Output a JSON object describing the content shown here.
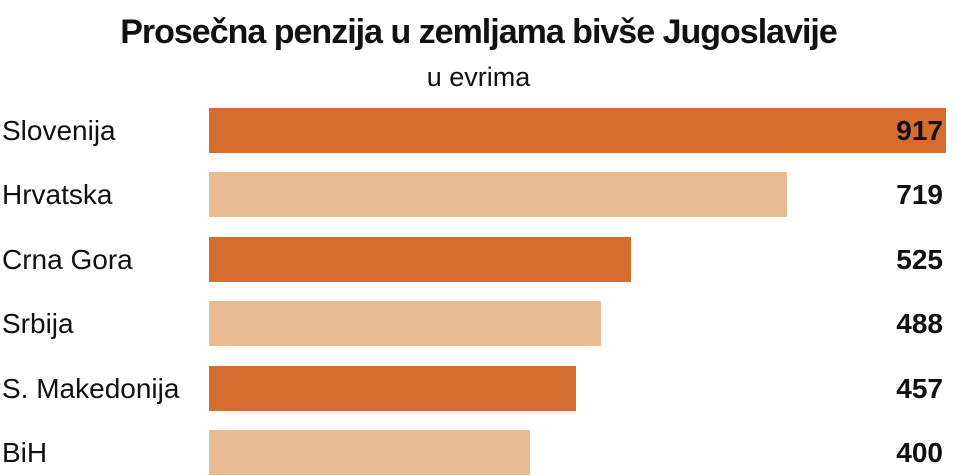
{
  "chart_data": {
    "type": "bar",
    "orientation": "horizontal",
    "title": "Prosečna penzija u zemljama bivše Jugoslavije",
    "subtitle": "u evrima",
    "categories": [
      "Slovenija",
      "Hrvatska",
      "Crna Gora",
      "Srbija",
      "S. Makedonija",
      "BiH"
    ],
    "values": [
      917,
      719,
      525,
      488,
      457,
      400
    ],
    "bar_colors": [
      "#d46d2f",
      "#e8bb90",
      "#d46d2f",
      "#e8bb90",
      "#d46d2f",
      "#e8bb90"
    ],
    "grid": false,
    "legend": "none"
  }
}
